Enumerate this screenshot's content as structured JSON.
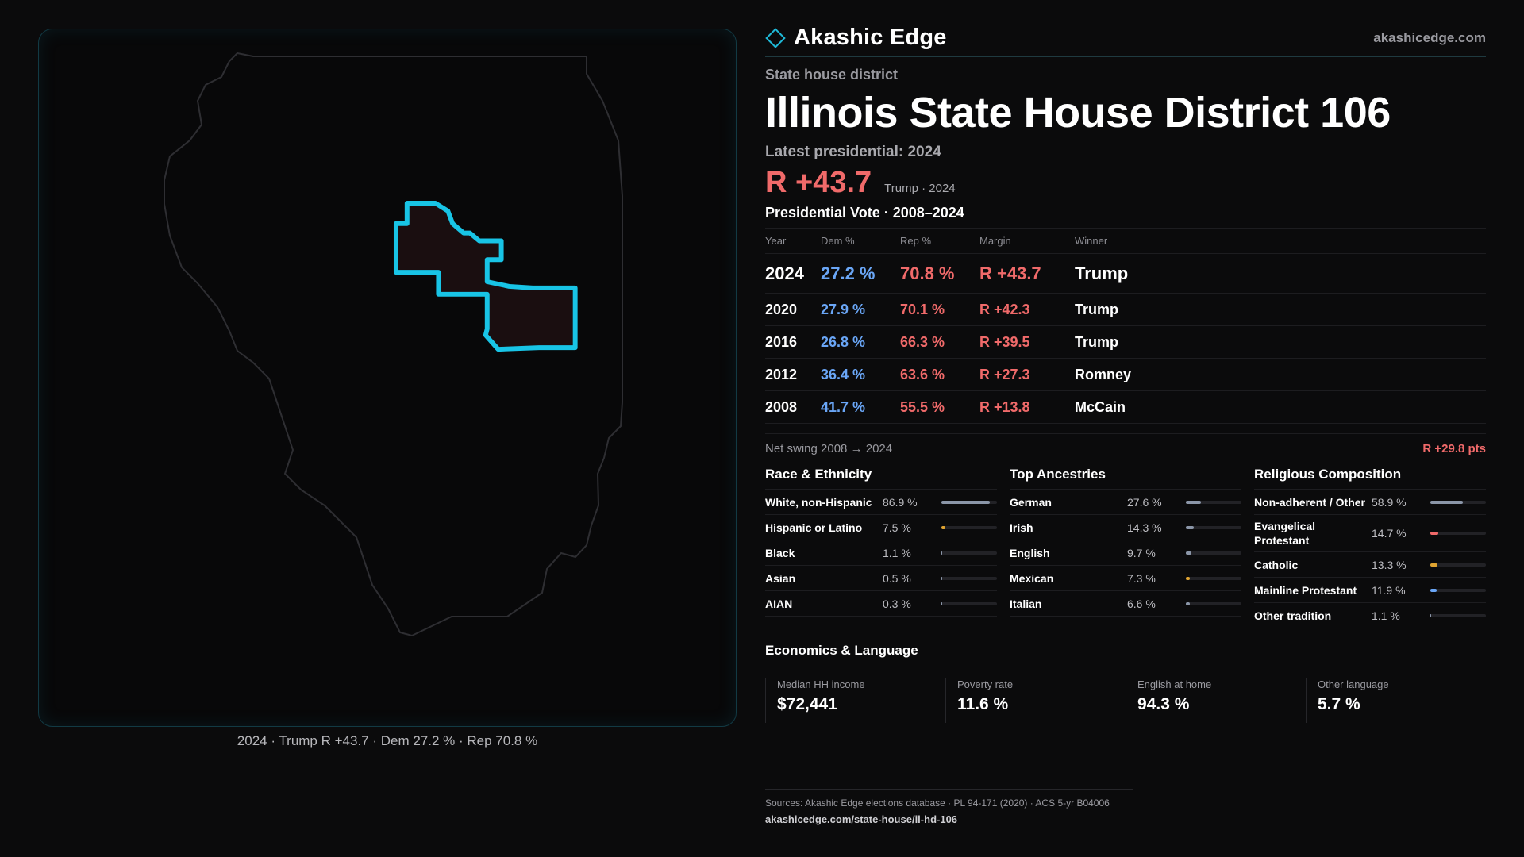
{
  "brand": {
    "name": "Akashic Edge",
    "url": "akashicedge.com",
    "accent": "#1fb8d6"
  },
  "district": {
    "kind": "State house district",
    "title": "Illinois State House District 106",
    "latest_label": "Latest presidential: 2024",
    "margin": "R +43.7",
    "margin_sub": "Trump · 2024"
  },
  "map": {
    "caption": "2024 · Trump R +43.7 · Dem 27.2 % · Rep 70.8 %",
    "icon": "district-outline"
  },
  "votes": {
    "title": "Presidential Vote · 2008–2024",
    "headers": [
      "Year",
      "Dem %",
      "Rep %",
      "Margin",
      "Winner"
    ],
    "rows": [
      {
        "year": "2024",
        "dem": "27.2 %",
        "rep": "70.8 %",
        "margin": "R +43.7",
        "winner": "Trump"
      },
      {
        "year": "2020",
        "dem": "27.9 %",
        "rep": "70.1 %",
        "margin": "R +42.3",
        "winner": "Trump"
      },
      {
        "year": "2016",
        "dem": "26.8 %",
        "rep": "66.3 %",
        "margin": "R +39.5",
        "winner": "Trump"
      },
      {
        "year": "2012",
        "dem": "36.4 %",
        "rep": "63.6 %",
        "margin": "R +27.3",
        "winner": "Romney"
      },
      {
        "year": "2008",
        "dem": "41.7 %",
        "rep": "55.5 %",
        "margin": "R +13.8",
        "winner": "McCain"
      }
    ],
    "swing_label": "Net swing 2008 → 2024",
    "swing_value": "R +29.8 pts"
  },
  "race": {
    "title": "Race & Ethnicity",
    "items": [
      {
        "label": "White, non-Hispanic",
        "value": "86.9 %",
        "pct": 86.9,
        "color": "#8b96a8"
      },
      {
        "label": "Hispanic or Latino",
        "value": "7.5 %",
        "pct": 7.5,
        "color": "#e0a431"
      },
      {
        "label": "Black",
        "value": "1.1 %",
        "pct": 1.1,
        "color": "#8b96a8"
      },
      {
        "label": "Asian",
        "value": "0.5 %",
        "pct": 0.5,
        "color": "#8b96a8"
      },
      {
        "label": "AIAN",
        "value": "0.3 %",
        "pct": 0.3,
        "color": "#8b96a8"
      }
    ]
  },
  "ancestry": {
    "title": "Top Ancestries",
    "items": [
      {
        "label": "German",
        "value": "27.6 %",
        "pct": 27.6,
        "color": "#8b96a8"
      },
      {
        "label": "Irish",
        "value": "14.3 %",
        "pct": 14.3,
        "color": "#8b96a8"
      },
      {
        "label": "English",
        "value": "9.7 %",
        "pct": 9.7,
        "color": "#8b96a8"
      },
      {
        "label": "Mexican",
        "value": "7.3 %",
        "pct": 7.3,
        "color": "#e0a431"
      },
      {
        "label": "Italian",
        "value": "6.6 %",
        "pct": 6.6,
        "color": "#8b96a8"
      }
    ]
  },
  "religion": {
    "title": "Religious Composition",
    "items": [
      {
        "label": "Non-adherent / Other",
        "value": "58.9 %",
        "pct": 58.9,
        "color": "#8b96a8"
      },
      {
        "label": "Evangelical Protestant",
        "value": "14.7 %",
        "pct": 14.7,
        "color": "#f06a6a"
      },
      {
        "label": "Catholic",
        "value": "13.3 %",
        "pct": 13.3,
        "color": "#e0a431"
      },
      {
        "label": "Mainline Protestant",
        "value": "11.9 %",
        "pct": 11.9,
        "color": "#6aa6f6"
      },
      {
        "label": "Other tradition",
        "value": "1.1 %",
        "pct": 1.1,
        "color": "#8b96a8"
      }
    ]
  },
  "econ": {
    "title": "Economics & Language",
    "cards": [
      {
        "label": "Median HH income",
        "value": "$72,441"
      },
      {
        "label": "Poverty rate",
        "value": "11.6 %"
      },
      {
        "label": "English at home",
        "value": "94.3 %"
      },
      {
        "label": "Other language",
        "value": "5.7 %"
      }
    ]
  },
  "sources": {
    "line1": "Sources: Akashic Edge elections database · PL 94-171 (2020) · ACS 5-yr B04006",
    "line2": "akashicedge.com/state-house/il-hd-106"
  }
}
